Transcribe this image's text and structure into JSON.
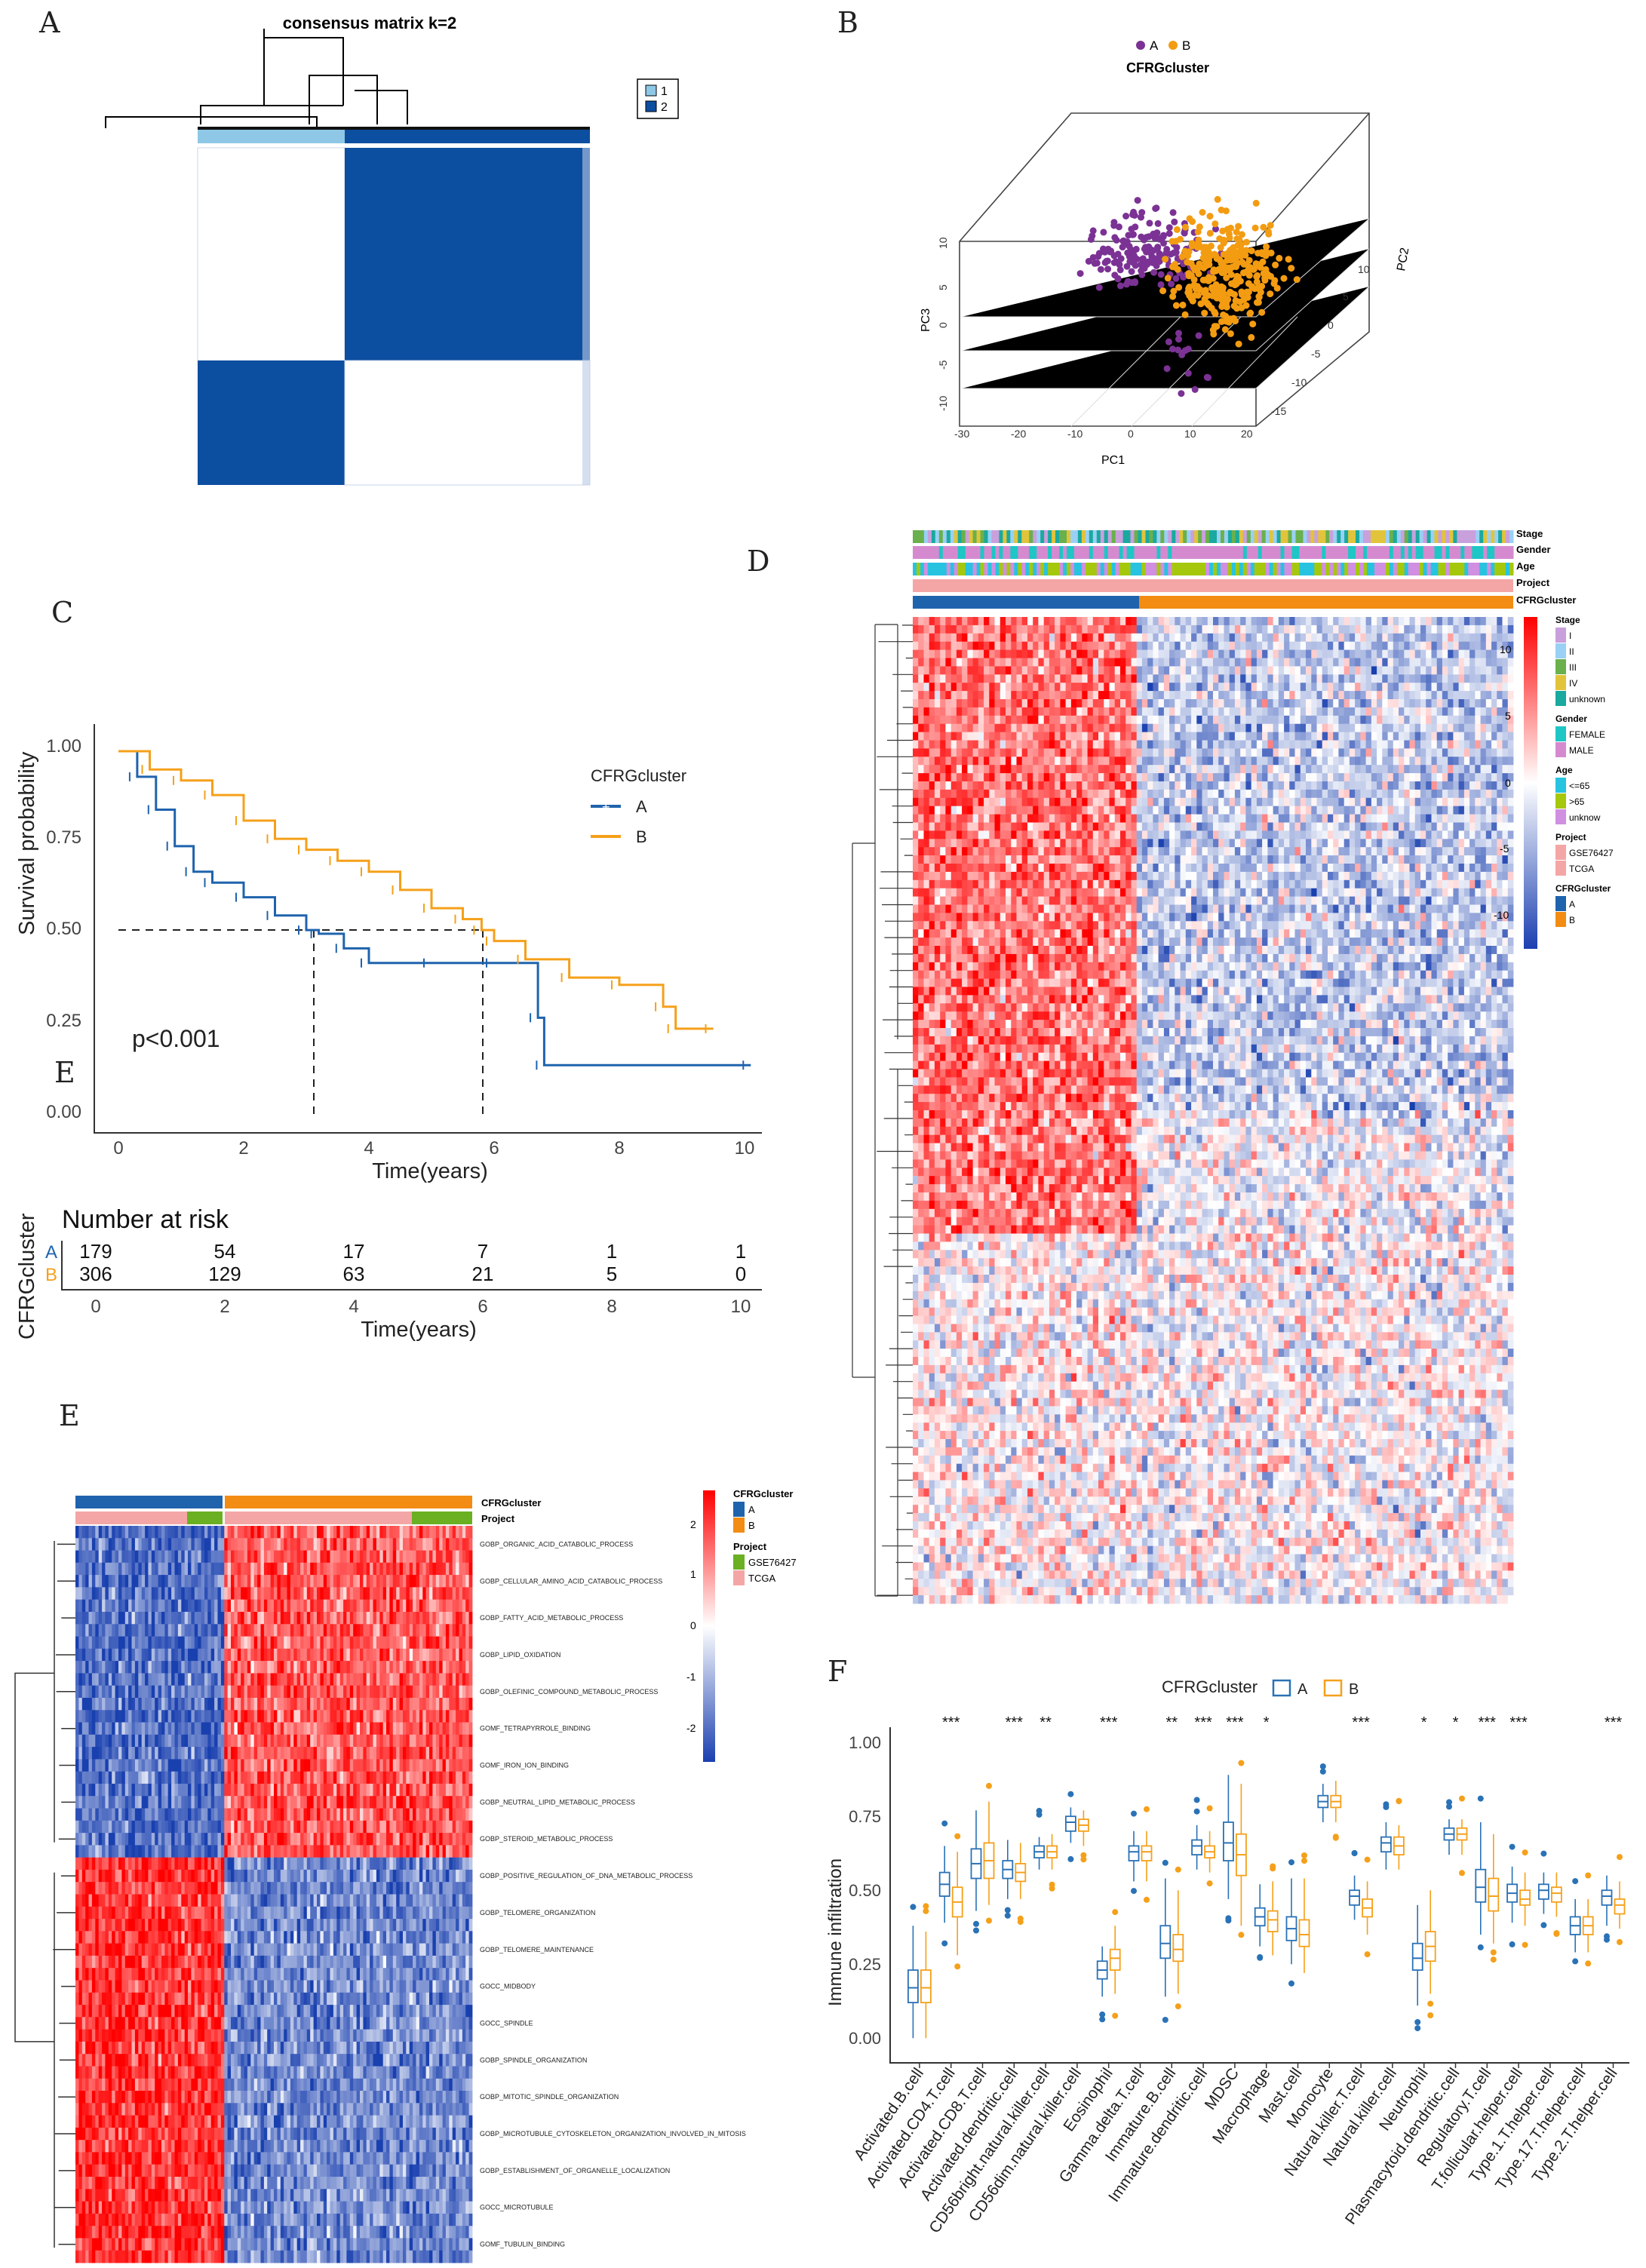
{
  "panels": {
    "a": "A",
    "b": "B",
    "c": "C",
    "d": "D",
    "e": "E",
    "f": "F",
    "c_overlay": "E"
  },
  "panel_a": {
    "title": "consensus matrix k=2",
    "legend": [
      "1",
      "2"
    ],
    "colors": {
      "c1": "#8ec8e6",
      "c2": "#0c4ea0"
    }
  },
  "panel_b": {
    "legend": [
      "A",
      "B"
    ],
    "title": "CFRGcluster",
    "axes": {
      "pc1": "PC1",
      "pc2": "PC2",
      "pc3": "PC3"
    },
    "pc1_ticks": [
      "-30",
      "-20",
      "-10",
      "0",
      "10",
      "20"
    ],
    "pc2_ticks": [
      "10",
      "5",
      "0",
      "-5",
      "-10",
      "-15"
    ],
    "pc3_ticks": [
      "10",
      "5",
      "0",
      "-5",
      "-10"
    ],
    "colors": {
      "A": "#7b3294",
      "B": "#f39c12"
    }
  },
  "panel_c": {
    "legend_title": "CFRGcluster",
    "legend": [
      "A",
      "B"
    ],
    "ylabel": "Survival probability",
    "xlabel": "Time(years)",
    "pvalue": "p<0.001",
    "yticks": [
      "1.00",
      "0.75",
      "0.50",
      "0.25",
      "0.00"
    ],
    "xticks": [
      "0",
      "2",
      "4",
      "6",
      "8",
      "10"
    ],
    "risk_title": "Number at risk",
    "risk_ylabel": "CFRGcluster",
    "risk_labels": [
      "A",
      "B"
    ],
    "risk_A": [
      "179",
      "54",
      "17",
      "7",
      "1",
      "1"
    ],
    "risk_B": [
      "306",
      "129",
      "63",
      "21",
      "5",
      "0"
    ],
    "risk_xticks": [
      "0",
      "2",
      "4",
      "6",
      "8",
      "10"
    ],
    "risk_xlabel": "Time(years)",
    "colors": {
      "A": "#1f63ad",
      "B": "#f5a01a"
    }
  },
  "panel_d": {
    "annot": [
      "Stage",
      "Gender",
      "Age",
      "Project",
      "CFRGcluster"
    ],
    "scale": [
      "10",
      "5",
      "0",
      "-5",
      "-10"
    ],
    "legend": [
      {
        "title": "Stage",
        "items": [
          "I",
          "II",
          "III",
          "IV",
          "unknown"
        ],
        "colors": [
          "#c9a0dc",
          "#9ad0f5",
          "#6ab04c",
          "#e1c43b",
          "#1aa99f"
        ]
      },
      {
        "title": "Gender",
        "items": [
          "FEMALE",
          "MALE"
        ],
        "colors": [
          "#1ec6c6",
          "#d58ad0"
        ]
      },
      {
        "title": "Age",
        "items": [
          "<=65",
          ">65",
          "unknow"
        ],
        "colors": [
          "#27c3e0",
          "#a5c80d",
          "#d08fe0"
        ]
      },
      {
        "title": "Project",
        "items": [
          "GSE76427",
          "TCGA"
        ],
        "colors": [
          "#f4a6a6",
          "#f4a6a6"
        ]
      },
      {
        "title": "CFRGcluster",
        "items": [
          "A",
          "B"
        ],
        "colors": [
          "#1f63ad",
          "#f28c13"
        ]
      }
    ]
  },
  "panel_e": {
    "annot": [
      "CFRGcluster",
      "Project"
    ],
    "scale": [
      "2",
      "1",
      "0",
      "-1",
      "-2"
    ],
    "legend": [
      {
        "title": "CFRGcluster",
        "items": [
          "A",
          "B"
        ],
        "colors": [
          "#1f63ad",
          "#f28c13"
        ]
      },
      {
        "title": "Project",
        "items": [
          "GSE76427",
          "TCGA"
        ],
        "colors": [
          "#6ab022",
          "#f4a6a6"
        ]
      }
    ],
    "rows": [
      "GOBP_ORGANIC_ACID_CATABOLIC_PROCESS",
      "GOBP_CELLULAR_AMINO_ACID_CATABOLIC_PROCESS",
      "GOBP_FATTY_ACID_METABOLIC_PROCESS",
      "GOBP_LIPID_OXIDATION",
      "GOBP_OLEFINIC_COMPOUND_METABOLIC_PROCESS",
      "GOMF_TETRAPYRROLE_BINDING",
      "GOMF_IRON_ION_BINDING",
      "GOBP_NEUTRAL_LIPID_METABOLIC_PROCESS",
      "GOBP_STEROID_METABOLIC_PROCESS",
      "GOBP_POSITIVE_REGULATION_OF_DNA_METABOLIC_PROCESS",
      "GOBP_TELOMERE_ORGANIZATION",
      "GOBP_TELOMERE_MAINTENANCE",
      "GOCC_MIDBODY",
      "GOCC_SPINDLE",
      "GOBP_SPINDLE_ORGANIZATION",
      "GOBP_MITOTIC_SPINDLE_ORGANIZATION",
      "GOBP_MICROTUBULE_CYTOSKELETON_ORGANIZATION_INVOLVED_IN_MITOSIS",
      "GOBP_ESTABLISHMENT_OF_ORGANELLE_LOCALIZATION",
      "GOCC_MICROTUBULE",
      "GOMF_TUBULIN_BINDING"
    ]
  },
  "panel_f": {
    "legend_title": "CFRGcluster",
    "legend": [
      "A",
      "B"
    ],
    "ylabel": "Immune infiltration",
    "yticks": [
      "1.00",
      "0.75",
      "0.50",
      "0.25",
      "0.00"
    ],
    "colors": {
      "A": "#2a72b6",
      "B": "#f5a01a"
    }
  },
  "chart_data": [
    {
      "type": "scatter",
      "title": "CFRGcluster",
      "xlabel": "PC1",
      "ylabel": "PC2",
      "zlabel": "PC3",
      "xlim": [
        -30,
        20
      ],
      "ylim": [
        -15,
        10
      ],
      "zlim": [
        -10,
        10
      ],
      "series": [
        {
          "name": "A"
        },
        {
          "name": "B"
        }
      ]
    },
    {
      "type": "line",
      "title": "",
      "xlabel": "Time(years)",
      "ylabel": "Survival probability",
      "xlim": [
        0,
        10
      ],
      "ylim": [
        0,
        1
      ],
      "series": [
        {
          "name": "A",
          "x": [
            0,
            0.3,
            0.6,
            0.9,
            1.2,
            1.5,
            2.0,
            2.5,
            3.0,
            3.2,
            3.6,
            4.0,
            5.0,
            6.0,
            6.7,
            6.8,
            10.1
          ],
          "y": [
            1.0,
            0.93,
            0.84,
            0.74,
            0.67,
            0.64,
            0.6,
            0.55,
            0.51,
            0.5,
            0.46,
            0.42,
            0.42,
            0.42,
            0.27,
            0.14,
            0.14
          ]
        },
        {
          "name": "B",
          "x": [
            0,
            0.5,
            1.0,
            1.5,
            2.0,
            2.5,
            3.0,
            3.5,
            4.0,
            4.5,
            5.0,
            5.5,
            5.8,
            6.0,
            6.5,
            7.2,
            8.0,
            8.7,
            8.9,
            9.5
          ],
          "y": [
            1.0,
            0.95,
            0.92,
            0.88,
            0.81,
            0.76,
            0.73,
            0.7,
            0.67,
            0.62,
            0.57,
            0.54,
            0.51,
            0.48,
            0.43,
            0.38,
            0.36,
            0.3,
            0.24,
            0.24
          ]
        }
      ]
    },
    {
      "type": "table",
      "title": "Number at risk",
      "columns": [
        "0",
        "2",
        "4",
        "6",
        "8",
        "10"
      ],
      "rows": [
        {
          "name": "A",
          "values": [
            179,
            54,
            17,
            7,
            1,
            1
          ]
        },
        {
          "name": "B",
          "values": [
            306,
            129,
            63,
            21,
            5,
            0
          ]
        }
      ]
    },
    {
      "type": "bar",
      "title": "",
      "xlabel": "",
      "ylabel": "Immune infiltration",
      "ylim": [
        0,
        1
      ],
      "categories": [
        "Activated.B.cell",
        "Activated.CD4.T.cell",
        "Activated.CD8.T.cell",
        "Activated.dendritic.cell",
        "CD56bright.natural.killer.cell",
        "CD56dim.natural.killer.cell",
        "Eosinophil",
        "Gamma.delta.T.cell",
        "Immature.B.cell",
        "Immature.dendritic.cell",
        "MDSC",
        "Macrophage",
        "Mast.cell",
        "Monocyte",
        "Natural.killer.T.cell",
        "Natural.killer.cell",
        "Neutrophil",
        "Plasmacytoid.dendritic.cell",
        "Regulatory.T.cell",
        "T.follicular.helper.cell",
        "Type.1.T.helper.cell",
        "Type.17.T.helper.cell",
        "Type.2.T.helper.cell"
      ],
      "significance": [
        "",
        "***",
        "",
        "***",
        "**",
        "",
        "***",
        "",
        "**",
        "***",
        "***",
        "*",
        "",
        "",
        "***",
        "",
        "*",
        "*",
        "***",
        "***",
        "",
        "",
        "***"
      ],
      "series": [
        {
          "name": "A",
          "median": [
            0.19,
            0.54,
            0.61,
            0.59,
            0.65,
            0.75,
            0.25,
            0.65,
            0.34,
            0.67,
            0.68,
            0.43,
            0.39,
            0.82,
            0.5,
            0.68,
            0.29,
            0.71,
            0.53,
            0.51,
            0.52,
            0.4,
            0.5
          ],
          "q1": [
            0.14,
            0.5,
            0.56,
            0.56,
            0.63,
            0.72,
            0.22,
            0.62,
            0.29,
            0.64,
            0.62,
            0.4,
            0.35,
            0.8,
            0.47,
            0.65,
            0.25,
            0.69,
            0.48,
            0.48,
            0.49,
            0.37,
            0.47
          ],
          "q3": [
            0.25,
            0.58,
            0.66,
            0.62,
            0.67,
            0.77,
            0.28,
            0.67,
            0.4,
            0.69,
            0.75,
            0.46,
            0.43,
            0.84,
            0.52,
            0.7,
            0.34,
            0.73,
            0.59,
            0.54,
            0.54,
            0.43,
            0.52
          ],
          "min": [
            0.02,
            0.41,
            0.45,
            0.49,
            0.59,
            0.68,
            0.16,
            0.55,
            0.16,
            0.59,
            0.49,
            0.33,
            0.27,
            0.75,
            0.42,
            0.59,
            0.13,
            0.64,
            0.37,
            0.41,
            0.44,
            0.31,
            0.4
          ],
          "max": [
            0.4,
            0.67,
            0.79,
            0.69,
            0.7,
            0.8,
            0.33,
            0.72,
            0.56,
            0.74,
            0.91,
            0.54,
            0.56,
            0.88,
            0.57,
            0.75,
            0.47,
            0.76,
            0.75,
            0.6,
            0.58,
            0.49,
            0.57
          ]
        },
        {
          "name": "B",
          "median": [
            0.19,
            0.48,
            0.62,
            0.58,
            0.65,
            0.74,
            0.29,
            0.65,
            0.32,
            0.65,
            0.64,
            0.42,
            0.37,
            0.82,
            0.46,
            0.67,
            0.33,
            0.71,
            0.5,
            0.49,
            0.51,
            0.4,
            0.47
          ],
          "q1": [
            0.14,
            0.43,
            0.56,
            0.55,
            0.63,
            0.72,
            0.25,
            0.62,
            0.28,
            0.63,
            0.57,
            0.38,
            0.33,
            0.8,
            0.43,
            0.64,
            0.28,
            0.69,
            0.45,
            0.47,
            0.48,
            0.37,
            0.44
          ],
          "q3": [
            0.25,
            0.53,
            0.68,
            0.61,
            0.67,
            0.76,
            0.32,
            0.67,
            0.37,
            0.67,
            0.71,
            0.45,
            0.42,
            0.84,
            0.49,
            0.7,
            0.38,
            0.73,
            0.56,
            0.52,
            0.53,
            0.43,
            0.49
          ],
          "min": [
            0.02,
            0.3,
            0.47,
            0.49,
            0.59,
            0.67,
            0.17,
            0.55,
            0.17,
            0.58,
            0.4,
            0.3,
            0.24,
            0.75,
            0.37,
            0.59,
            0.17,
            0.64,
            0.34,
            0.4,
            0.43,
            0.31,
            0.39
          ],
          "max": [
            0.38,
            0.65,
            0.82,
            0.68,
            0.71,
            0.79,
            0.4,
            0.72,
            0.52,
            0.72,
            0.88,
            0.55,
            0.56,
            0.89,
            0.55,
            0.74,
            0.52,
            0.76,
            0.71,
            0.58,
            0.58,
            0.49,
            0.55
          ]
        }
      ]
    }
  ]
}
